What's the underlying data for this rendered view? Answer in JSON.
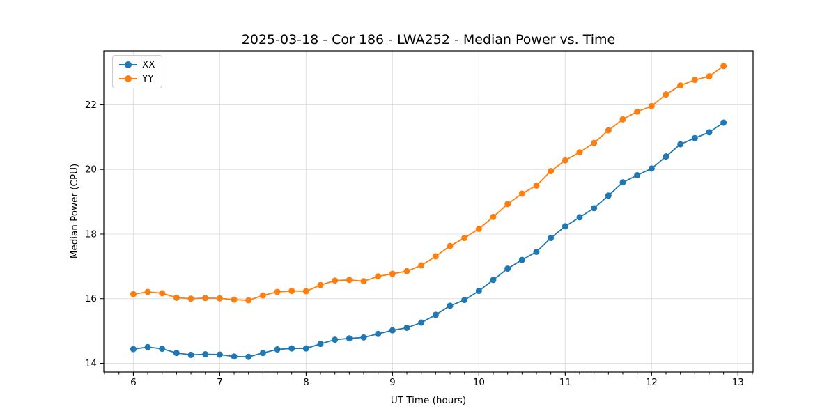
{
  "chart_data": {
    "type": "line",
    "title": "2025-03-18 - Cor 186 - LWA252 - Median Power vs. Time",
    "xlabel": "UT Time (hours)",
    "ylabel": "Median Power (CPU)",
    "xlim": [
      5.658,
      13.175
    ],
    "ylim": [
      13.73,
      23.67
    ],
    "x_ticks": [
      6,
      7,
      8,
      9,
      10,
      11,
      12,
      13
    ],
    "y_ticks": [
      14,
      16,
      18,
      20,
      22
    ],
    "x_minor_step": 0.166667,
    "grid": true,
    "legend_position": "upper-left",
    "x": [
      6.0,
      6.1667,
      6.3333,
      6.5,
      6.6667,
      6.8333,
      7.0,
      7.1667,
      7.3333,
      7.5,
      7.6667,
      7.8333,
      8.0,
      8.1667,
      8.3333,
      8.5,
      8.6667,
      8.8333,
      9.0,
      9.1667,
      9.3333,
      9.5,
      9.6667,
      9.8333,
      10.0,
      10.1667,
      10.3333,
      10.5,
      10.6667,
      10.8333,
      11.0,
      11.1667,
      11.3333,
      11.5,
      11.6667,
      11.8333,
      12.0,
      12.1667,
      12.3333,
      12.5,
      12.6667,
      12.8333
    ],
    "series": [
      {
        "name": "XX",
        "color": "#1f77b4",
        "values": [
          14.44,
          14.5,
          14.45,
          14.32,
          14.26,
          14.28,
          14.27,
          14.21,
          14.2,
          14.32,
          14.43,
          14.46,
          14.46,
          14.6,
          14.73,
          14.77,
          14.8,
          14.91,
          15.02,
          15.1,
          15.26,
          15.5,
          15.78,
          15.96,
          16.24,
          16.58,
          16.93,
          17.2,
          17.45,
          17.88,
          18.24,
          18.52,
          18.8,
          19.19,
          19.6,
          19.82,
          20.03,
          20.4,
          20.78,
          20.97,
          21.15,
          21.45
        ]
      },
      {
        "name": "YY",
        "color": "#ff7f0e",
        "values": [
          16.14,
          16.21,
          16.17,
          16.03,
          16.0,
          16.02,
          16.01,
          15.97,
          15.95,
          16.1,
          16.21,
          16.24,
          16.23,
          16.42,
          16.56,
          16.58,
          16.54,
          16.69,
          16.77,
          16.85,
          17.03,
          17.31,
          17.63,
          17.88,
          18.16,
          18.53,
          18.93,
          19.25,
          19.5,
          19.95,
          20.28,
          20.53,
          20.82,
          21.21,
          21.55,
          21.79,
          21.96,
          22.32,
          22.6,
          22.77,
          22.88,
          23.2
        ]
      }
    ],
    "style": {
      "grid_color": "#e0e0e0",
      "spine_color": "#000000",
      "tick_color": "#000000",
      "marker_radius": 4.5,
      "line_width": 1.8
    }
  }
}
